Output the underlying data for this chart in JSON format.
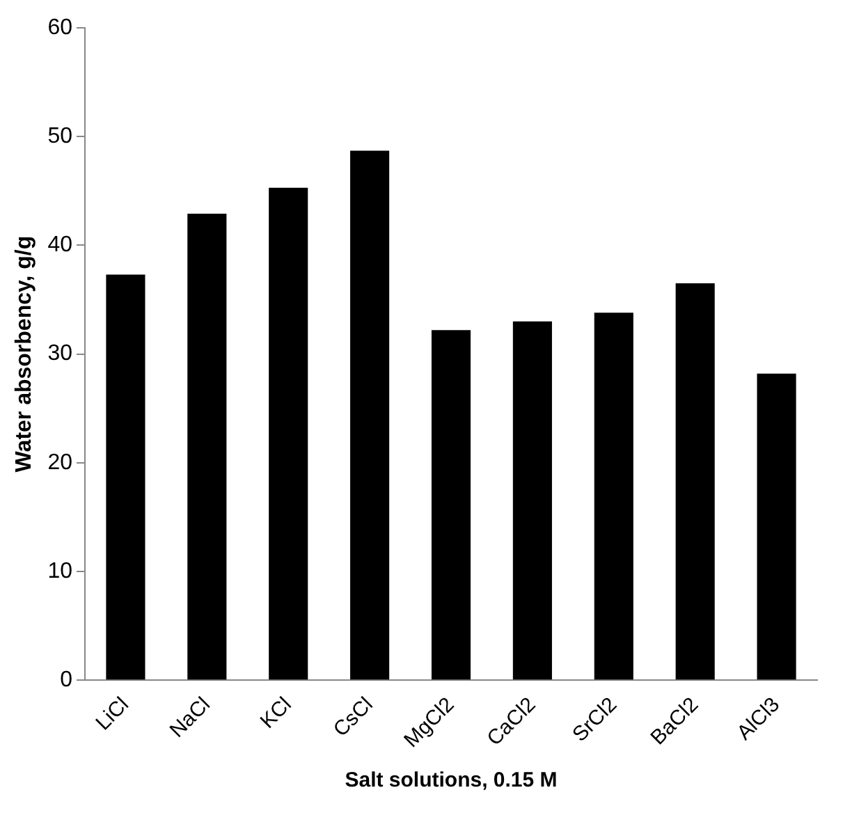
{
  "chart_data": {
    "type": "bar",
    "xlabel": "Salt solutions, 0.15 M",
    "ylabel": "Water absorbency, g/g",
    "categories": [
      "LiCl",
      "NaCl",
      "KCl",
      "CsCl",
      "MgCl2",
      "CaCl2",
      "SrCl2",
      "BaCl2",
      "AlCl3"
    ],
    "values": [
      37.3,
      42.9,
      45.3,
      48.7,
      32.2,
      33.0,
      33.8,
      36.5,
      28.2
    ],
    "color": "#000000",
    "ylim": [
      0,
      60
    ],
    "yticks": [
      0,
      10,
      20,
      30,
      40,
      50,
      60
    ],
    "grid": false,
    "legend": false
  }
}
